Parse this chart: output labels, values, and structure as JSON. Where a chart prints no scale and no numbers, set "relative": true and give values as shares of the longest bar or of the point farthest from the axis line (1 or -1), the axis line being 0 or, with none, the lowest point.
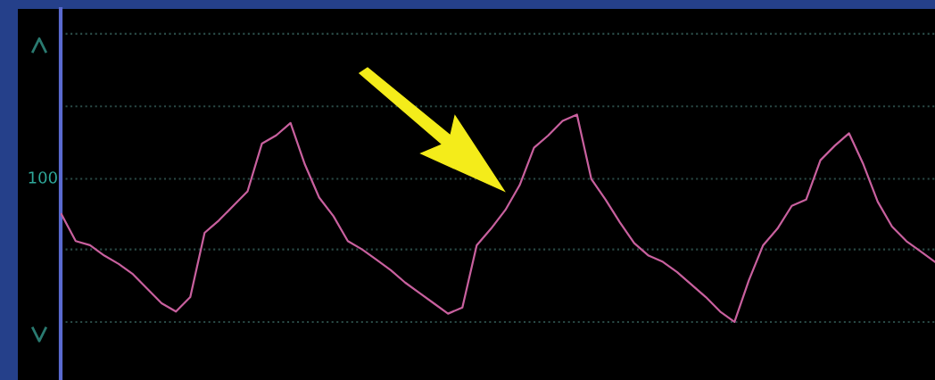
{
  "chart_data": {
    "type": "line",
    "relative": true,
    "categories": [
      null,
      null,
      null,
      null,
      null,
      null,
      null,
      null,
      null,
      null,
      null,
      null,
      null,
      null,
      null,
      null,
      null,
      null,
      null,
      null,
      null,
      null,
      null,
      null,
      null,
      null,
      null,
      null,
      null,
      null,
      null,
      null,
      null,
      null,
      null,
      null,
      null,
      null,
      null,
      null,
      null,
      null,
      null,
      null,
      null,
      null,
      null,
      null,
      null,
      null,
      null,
      null,
      null,
      null,
      null,
      null,
      null,
      null,
      null,
      null,
      null,
      null
    ],
    "series": [
      {
        "color": "#c8609e",
        "values": [
          0.52,
          0.39,
          0.37,
          0.32,
          0.28,
          0.23,
          0.16,
          0.09,
          0.05,
          0.12,
          0.43,
          0.49,
          0.56,
          0.63,
          0.86,
          0.9,
          0.96,
          0.76,
          0.6,
          0.51,
          0.39,
          0.35,
          0.3,
          0.25,
          0.19,
          0.14,
          0.09,
          0.04,
          0.07,
          0.37,
          0.45,
          0.54,
          0.66,
          0.84,
          0.9,
          0.97,
          1.0,
          0.69,
          0.59,
          0.48,
          0.38,
          0.32,
          0.29,
          0.24,
          0.18,
          0.12,
          0.05,
          0.0,
          0.2,
          0.37,
          0.45,
          0.56,
          0.59,
          0.78,
          0.85,
          0.91,
          0.76,
          0.58,
          0.46,
          0.39,
          0.34,
          0.29
        ]
      }
    ],
    "annotations": [
      "100"
    ],
    "ref_lines": [
      {
        "axis": "y",
        "value": 1.39,
        "color": "#2a4a46",
        "line_style": "dotted"
      },
      {
        "axis": "y",
        "value": 1.04,
        "color": "#2a4a46",
        "line_style": "dotted"
      },
      {
        "axis": "y",
        "value": 0.69,
        "color": "#2a4a46",
        "line_style": "dotted"
      },
      {
        "axis": "y",
        "value": 0.35,
        "color": "#2a4a46",
        "line_style": "dotted"
      },
      {
        "axis": "y",
        "value": 0.0,
        "color": "#2a4a46",
        "line_style": "dotted"
      }
    ]
  }
}
